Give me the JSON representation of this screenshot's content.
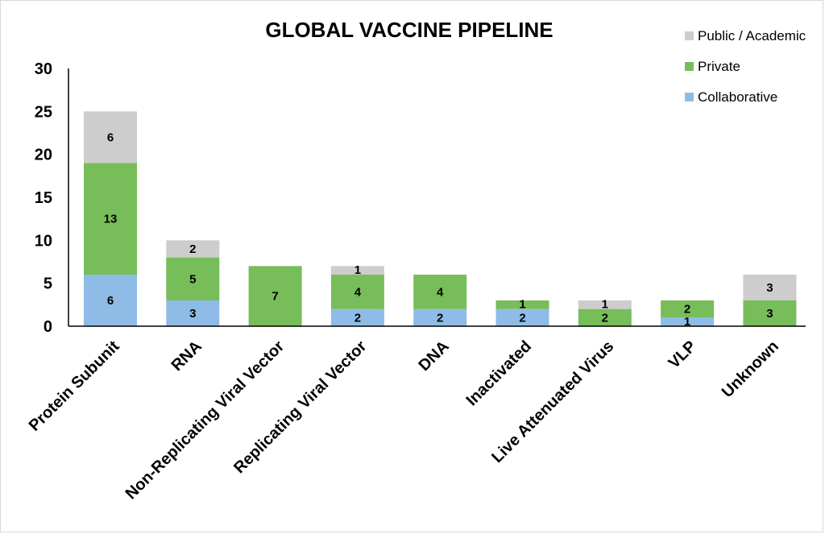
{
  "chart_data": {
    "type": "bar",
    "stacked": true,
    "title": "GLOBAL VACCINE PIPELINE",
    "xlabel": "",
    "ylabel": "",
    "ylim": [
      0,
      30
    ],
    "yticks": [
      0,
      5,
      10,
      15,
      20,
      25,
      30
    ],
    "grid": false,
    "legend_position": "top-right",
    "categories": [
      "Protein Subunit",
      "RNA",
      "Non-Replicating Viral Vector",
      "Replicating Viral Vector",
      "DNA",
      "Inactivated",
      "Live Attenuated Virus",
      "VLP",
      "Unknown"
    ],
    "series": [
      {
        "name": "Collaborative",
        "color": "#8fbce6",
        "values": [
          6,
          3,
          0,
          2,
          2,
          2,
          0,
          1,
          0
        ]
      },
      {
        "name": "Private",
        "color": "#77bd5a",
        "values": [
          13,
          5,
          7,
          4,
          4,
          1,
          2,
          2,
          3
        ]
      },
      {
        "name": "Public / Academic",
        "color": "#cdcdcd",
        "values": [
          6,
          2,
          0,
          1,
          0,
          0,
          1,
          0,
          3
        ]
      }
    ],
    "legend_order": [
      "Public / Academic",
      "Private",
      "Collaborative"
    ]
  }
}
